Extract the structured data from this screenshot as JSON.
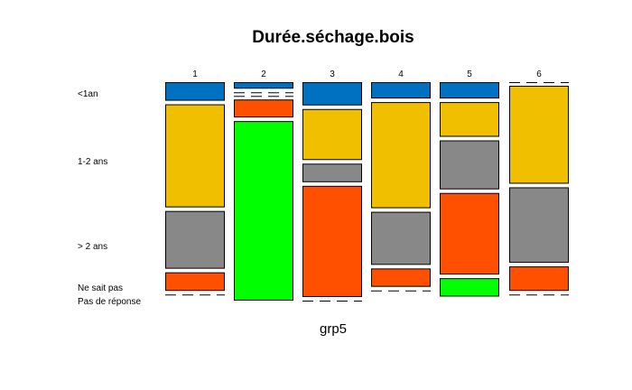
{
  "chart_data": {
    "type": "mosaic",
    "title": "Durée.séchage.bois",
    "xlabel": "grp5",
    "categories": [
      "1",
      "2",
      "3",
      "4",
      "5",
      "6"
    ],
    "rows": [
      "<1an",
      "1-2 ans",
      "> 2 ans",
      "Ne sait pas",
      "Pas de réponse"
    ],
    "colors": {
      "<1an": "#0070c0",
      "1-2 ans": "#f0c000",
      "> 2 ans": "#888888",
      "Ne sait pas": "#ff5000",
      "Pas de réponse": "#00ff00"
    },
    "column_proportions": [
      {
        "<1an": 0.091,
        "1-2 ans": 0.505,
        "> 2 ans": 0.283,
        "Ne sait pas": 0.091,
        "Pas de réponse": 0.0
      },
      {
        "<1an": 0.032,
        "1-2 ans": 0.0,
        "> 2 ans": 0.0,
        "Ne sait pas": 0.088,
        "Pas de réponse": 0.88
      },
      {
        "<1an": 0.114,
        "1-2 ans": 0.25,
        "> 2 ans": 0.091,
        "Ne sait pas": 0.545,
        "Pas de réponse": 0.0
      },
      {
        "<1an": 0.08,
        "1-2 ans": 0.52,
        "> 2 ans": 0.26,
        "Ne sait pas": 0.09,
        "Pas de réponse": 0.0
      },
      {
        "<1an": 0.08,
        "1-2 ans": 0.17,
        "> 2 ans": 0.24,
        "Ne sait pas": 0.4,
        "Pas de réponse": 0.09
      },
      {
        "<1an": 0.0,
        "1-2 ans": 0.48,
        "> 2 ans": 0.37,
        "Ne sait pas": 0.12,
        "Pas de réponse": 0.0
      }
    ]
  }
}
